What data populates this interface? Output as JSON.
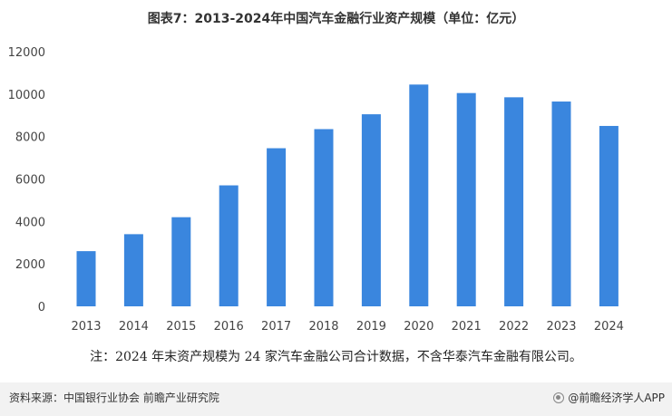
{
  "title": "图表7：2013-2024年中国汽车金融行业资产规模（单位：亿元）",
  "note": "注：2024 年末资产规模为 24 家汽车金融公司合计数据，不含华泰汽车金融有限公司。",
  "footer": {
    "source": "资料来源：中国银行业协会 前瞻产业研究院",
    "brand": "@前瞻经济学人APP",
    "brand_icon": "brand-logo-icon"
  },
  "colors": {
    "bar": "#3a86de"
  },
  "chart_data": {
    "type": "bar",
    "title": "图表7：2013-2024年中国汽车金融行业资产规模（单位：亿元）",
    "categories": [
      "2013",
      "2014",
      "2015",
      "2016",
      "2017",
      "2018",
      "2019",
      "2020",
      "2021",
      "2022",
      "2023",
      "2024"
    ],
    "values": [
      2600,
      3400,
      4200,
      5700,
      7450,
      8350,
      9050,
      10450,
      10050,
      9850,
      9650,
      8500
    ],
    "y_ticks": [
      "0",
      "2000",
      "4000",
      "6000",
      "8000",
      "10000",
      "12000"
    ],
    "ylim": [
      0,
      12000
    ],
    "xlabel": "",
    "ylabel": "",
    "grid": false,
    "legend": "none"
  }
}
